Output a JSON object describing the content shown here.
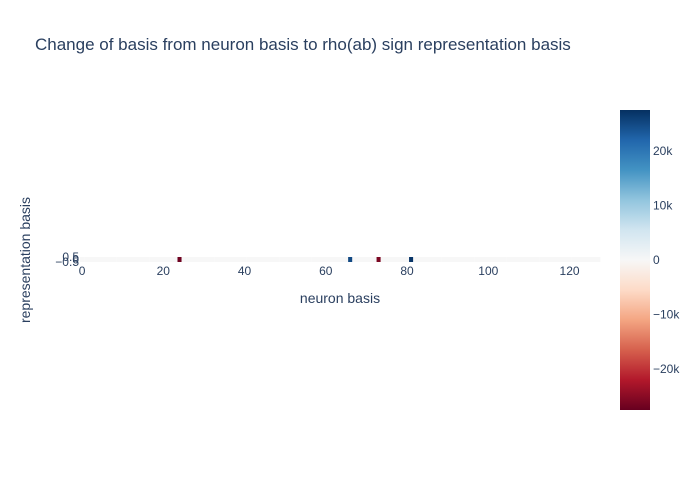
{
  "chart_data": {
    "type": "heatmap",
    "title": "Change of basis from neuron basis to rho(ab) sign representation basis",
    "xlabel": "neuron basis",
    "ylabel": "representation basis",
    "x_range": [
      -0.5,
      127.5
    ],
    "y_range": [
      -0.5,
      0.5
    ],
    "x_ticks": [
      0,
      20,
      40,
      60,
      80,
      100,
      120
    ],
    "x_tick_labels": [
      "0",
      "20",
      "40",
      "60",
      "80",
      "100",
      "120"
    ],
    "y_ticks": [
      -0.5,
      0,
      0.5
    ],
    "y_tick_labels": [
      "−0.5",
      "0",
      "0.5"
    ],
    "colorscale": "RdBu",
    "zmin": -27500,
    "zmax": 27500,
    "colorbar_ticks": [
      20000,
      10000,
      0,
      -10000,
      -20000
    ],
    "colorbar_tick_labels": [
      "20k",
      "10k",
      "0",
      "−10k",
      "−20k"
    ],
    "rows": 1,
    "columns": 128,
    "cells": [
      {
        "x": 24,
        "z": -27000
      },
      {
        "x": 66,
        "z": 25000
      },
      {
        "x": 73,
        "z": -26000
      },
      {
        "x": 81,
        "z": 27000
      }
    ],
    "grid": false
  }
}
